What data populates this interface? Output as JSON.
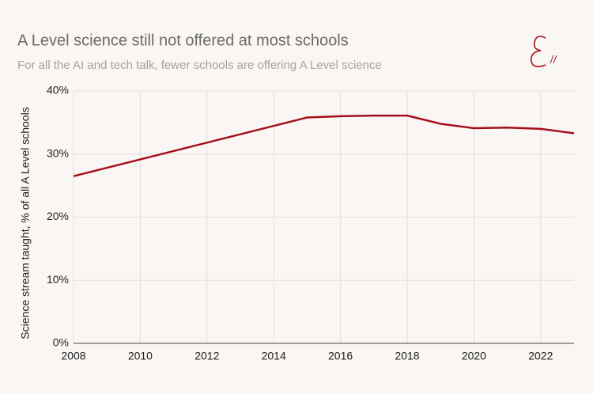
{
  "chart_data": {
    "type": "line",
    "title": "A Level science still not offered at most schools",
    "subtitle": "For all the AI and tech talk, fewer schools are offering A Level science",
    "y_label": "Science stream taught, % of all A Level schools",
    "x": [
      2008,
      2015,
      2016,
      2017,
      2018,
      2019,
      2020,
      2021,
      2022,
      2023
    ],
    "series": [
      {
        "name": "Science stream taught",
        "color": "#a50f1a",
        "values": [
          26.5,
          35.8,
          36.0,
          36.1,
          36.1,
          34.8,
          34.1,
          34.2,
          34.0,
          33.3
        ]
      }
    ],
    "xlim": [
      2008,
      2023
    ],
    "xticks": [
      2008,
      2010,
      2012,
      2014,
      2016,
      2018,
      2020,
      2022
    ],
    "ylim": [
      0,
      40
    ],
    "yticks": [
      {
        "value": 0,
        "label": "0%"
      },
      {
        "value": 10,
        "label": "10%"
      },
      {
        "value": 20,
        "label": "20%"
      },
      {
        "value": 30,
        "label": "30%"
      },
      {
        "value": 40,
        "label": "40%"
      }
    ],
    "grid": true
  }
}
